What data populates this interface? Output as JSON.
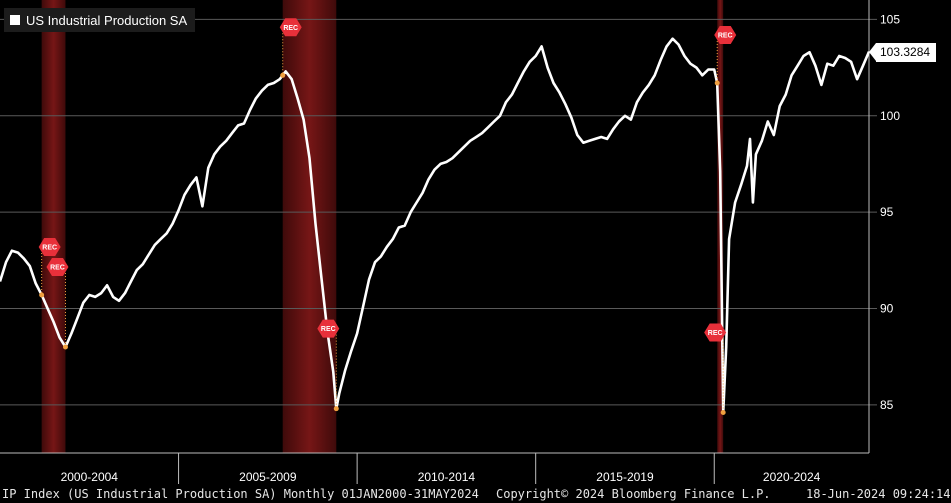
{
  "legend": {
    "label": "US Industrial Production SA"
  },
  "last_value_label": "103.3284",
  "footer": {
    "left": "IP Index (US Industrial Production SA)  Monthly 01JAN2000-31MAY2024",
    "center": "Copyright© 2024 Bloomberg Finance L.P.",
    "right": "18-Jun-2024 09:24:14"
  },
  "colors": {
    "background": "#000000",
    "line": "#ffffff",
    "grid": "#5a5a5a",
    "recession": "#8b1a1a",
    "rec_marker": "#e8303a"
  },
  "chart_data": {
    "type": "line",
    "title": "US Industrial Production SA",
    "xlabel": "",
    "ylabel": "",
    "x_range": [
      "2000-01",
      "2024-05"
    ],
    "ylim": [
      82.5,
      105.8
    ],
    "y_ticks": [
      85,
      90,
      95,
      100,
      105
    ],
    "x_tick_labels": [
      {
        "label": "2000-2004",
        "center": "2002-07"
      },
      {
        "label": "2005-2009",
        "center": "2007-07"
      },
      {
        "label": "2010-2014",
        "center": "2012-07"
      },
      {
        "label": "2015-2019",
        "center": "2017-07"
      },
      {
        "label": "2020-2024",
        "center": "2022-03"
      }
    ],
    "x_dividers": [
      "2005-01",
      "2010-01",
      "2015-01",
      "2020-01"
    ],
    "grid": true,
    "legend_position": "top-left",
    "last_value": 103.3284,
    "recessions": [
      {
        "start": "2001-03",
        "end": "2001-11",
        "label": "REC"
      },
      {
        "start": "2007-12",
        "end": "2009-06",
        "label": "REC"
      },
      {
        "start": "2020-02",
        "end": "2020-04",
        "label": "REC"
      }
    ],
    "series": [
      {
        "name": "US Industrial Production SA",
        "points": [
          [
            "2000-01",
            91.4
          ],
          [
            "2000-03",
            92.4
          ],
          [
            "2000-05",
            93.0
          ],
          [
            "2000-07",
            92.9
          ],
          [
            "2000-09",
            92.6
          ],
          [
            "2000-11",
            92.2
          ],
          [
            "2001-01",
            91.3
          ],
          [
            "2001-03",
            90.7
          ],
          [
            "2001-05",
            90.0
          ],
          [
            "2001-07",
            89.3
          ],
          [
            "2001-09",
            88.5
          ],
          [
            "2001-11",
            88.0
          ],
          [
            "2002-01",
            88.7
          ],
          [
            "2002-03",
            89.5
          ],
          [
            "2002-05",
            90.3
          ],
          [
            "2002-07",
            90.7
          ],
          [
            "2002-09",
            90.6
          ],
          [
            "2002-11",
            90.8
          ],
          [
            "2003-01",
            91.2
          ],
          [
            "2003-03",
            90.6
          ],
          [
            "2003-05",
            90.4
          ],
          [
            "2003-07",
            90.8
          ],
          [
            "2003-09",
            91.4
          ],
          [
            "2003-11",
            92.0
          ],
          [
            "2004-01",
            92.3
          ],
          [
            "2004-03",
            92.8
          ],
          [
            "2004-05",
            93.3
          ],
          [
            "2004-07",
            93.6
          ],
          [
            "2004-09",
            93.9
          ],
          [
            "2004-11",
            94.4
          ],
          [
            "2005-01",
            95.1
          ],
          [
            "2005-03",
            95.9
          ],
          [
            "2005-05",
            96.4
          ],
          [
            "2005-07",
            96.8
          ],
          [
            "2005-09",
            95.3
          ],
          [
            "2005-11",
            97.3
          ],
          [
            "2006-01",
            98.0
          ],
          [
            "2006-03",
            98.4
          ],
          [
            "2006-05",
            98.7
          ],
          [
            "2006-07",
            99.1
          ],
          [
            "2006-09",
            99.5
          ],
          [
            "2006-11",
            99.6
          ],
          [
            "2007-01",
            100.3
          ],
          [
            "2007-03",
            100.9
          ],
          [
            "2007-05",
            101.3
          ],
          [
            "2007-07",
            101.6
          ],
          [
            "2007-09",
            101.7
          ],
          [
            "2007-11",
            101.9
          ],
          [
            "2008-01",
            102.3
          ],
          [
            "2008-03",
            101.9
          ],
          [
            "2008-05",
            100.9
          ],
          [
            "2008-07",
            99.8
          ],
          [
            "2008-09",
            97.8
          ],
          [
            "2008-11",
            94.4
          ],
          [
            "2009-01",
            91.6
          ],
          [
            "2009-03",
            88.8
          ],
          [
            "2009-05",
            86.7
          ],
          [
            "2009-06",
            84.8
          ],
          [
            "2009-07",
            85.6
          ],
          [
            "2009-09",
            86.8
          ],
          [
            "2009-11",
            87.8
          ],
          [
            "2010-01",
            88.7
          ],
          [
            "2010-03",
            90.1
          ],
          [
            "2010-05",
            91.5
          ],
          [
            "2010-07",
            92.4
          ],
          [
            "2010-09",
            92.7
          ],
          [
            "2010-11",
            93.2
          ],
          [
            "2011-01",
            93.6
          ],
          [
            "2011-03",
            94.2
          ],
          [
            "2011-05",
            94.3
          ],
          [
            "2011-07",
            95.0
          ],
          [
            "2011-09",
            95.5
          ],
          [
            "2011-11",
            96.0
          ],
          [
            "2012-01",
            96.7
          ],
          [
            "2012-03",
            97.2
          ],
          [
            "2012-05",
            97.5
          ],
          [
            "2012-07",
            97.6
          ],
          [
            "2012-09",
            97.8
          ],
          [
            "2012-11",
            98.1
          ],
          [
            "2013-01",
            98.4
          ],
          [
            "2013-03",
            98.7
          ],
          [
            "2013-05",
            98.9
          ],
          [
            "2013-07",
            99.1
          ],
          [
            "2013-09",
            99.4
          ],
          [
            "2013-11",
            99.7
          ],
          [
            "2014-01",
            100.0
          ],
          [
            "2014-03",
            100.7
          ],
          [
            "2014-05",
            101.1
          ],
          [
            "2014-07",
            101.7
          ],
          [
            "2014-09",
            102.3
          ],
          [
            "2014-11",
            102.8
          ],
          [
            "2015-01",
            103.1
          ],
          [
            "2015-03",
            103.6
          ],
          [
            "2015-05",
            102.5
          ],
          [
            "2015-07",
            101.7
          ],
          [
            "2015-09",
            101.2
          ],
          [
            "2015-11",
            100.6
          ],
          [
            "2016-01",
            99.9
          ],
          [
            "2016-03",
            99.0
          ],
          [
            "2016-05",
            98.6
          ],
          [
            "2016-07",
            98.7
          ],
          [
            "2016-09",
            98.8
          ],
          [
            "2016-11",
            98.9
          ],
          [
            "2017-01",
            98.8
          ],
          [
            "2017-03",
            99.3
          ],
          [
            "2017-05",
            99.7
          ],
          [
            "2017-07",
            100.0
          ],
          [
            "2017-09",
            99.8
          ],
          [
            "2017-11",
            100.7
          ],
          [
            "2018-01",
            101.2
          ],
          [
            "2018-03",
            101.6
          ],
          [
            "2018-05",
            102.1
          ],
          [
            "2018-07",
            102.9
          ],
          [
            "2018-09",
            103.6
          ],
          [
            "2018-11",
            104.0
          ],
          [
            "2019-01",
            103.7
          ],
          [
            "2019-03",
            103.1
          ],
          [
            "2019-05",
            102.7
          ],
          [
            "2019-07",
            102.5
          ],
          [
            "2019-09",
            102.1
          ],
          [
            "2019-11",
            102.4
          ],
          [
            "2020-01",
            102.4
          ],
          [
            "2020-02",
            101.7
          ],
          [
            "2020-03",
            97.1
          ],
          [
            "2020-04",
            84.6
          ],
          [
            "2020-05",
            88.0
          ],
          [
            "2020-06",
            93.6
          ],
          [
            "2020-08",
            95.5
          ],
          [
            "2020-10",
            96.4
          ],
          [
            "2020-12",
            97.4
          ],
          [
            "2021-01",
            98.8
          ],
          [
            "2021-02",
            95.5
          ],
          [
            "2021-03",
            98.0
          ],
          [
            "2021-05",
            98.7
          ],
          [
            "2021-07",
            99.7
          ],
          [
            "2021-09",
            99.0
          ],
          [
            "2021-11",
            100.5
          ],
          [
            "2022-01",
            101.1
          ],
          [
            "2022-03",
            102.1
          ],
          [
            "2022-05",
            102.6
          ],
          [
            "2022-07",
            103.1
          ],
          [
            "2022-09",
            103.3
          ],
          [
            "2022-11",
            102.6
          ],
          [
            "2023-01",
            101.6
          ],
          [
            "2023-03",
            102.7
          ],
          [
            "2023-05",
            102.6
          ],
          [
            "2023-07",
            103.1
          ],
          [
            "2023-09",
            103.0
          ],
          [
            "2023-11",
            102.8
          ],
          [
            "2024-01",
            101.9
          ],
          [
            "2024-03",
            102.6
          ],
          [
            "2024-05",
            103.3284
          ]
        ]
      }
    ]
  }
}
